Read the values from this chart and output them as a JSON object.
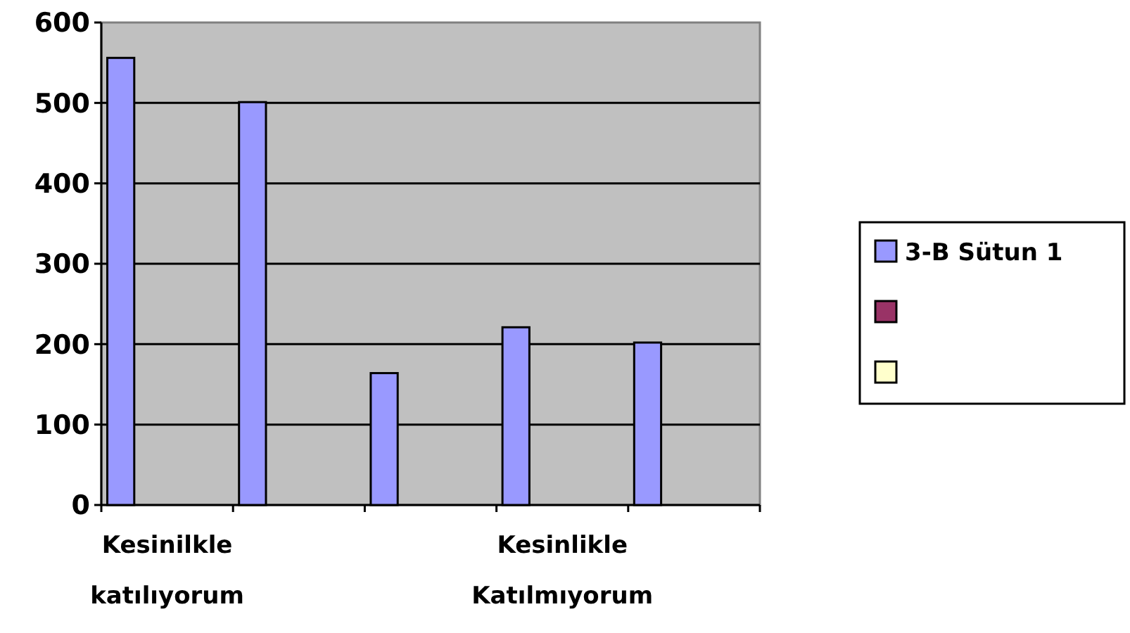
{
  "chart_data": {
    "type": "bar",
    "categories": [
      "Kesinilkle katılıyorum",
      null,
      null,
      "Kesinlikle Katılmıyorum",
      null
    ],
    "series": [
      {
        "name": "3-B Sütun 1",
        "color": "#9999ff",
        "values": [
          556,
          501,
          164,
          221,
          202
        ]
      },
      {
        "color": "#993366",
        "values": [
          null,
          null,
          null,
          null,
          null
        ]
      },
      {
        "color": "#ffffcc",
        "values": [
          null,
          null,
          null,
          null,
          null
        ]
      }
    ],
    "ylim": [
      0,
      600
    ],
    "yticks": [
      0,
      100,
      200,
      300,
      400,
      500,
      600
    ],
    "grid": "y",
    "legend": "right"
  }
}
